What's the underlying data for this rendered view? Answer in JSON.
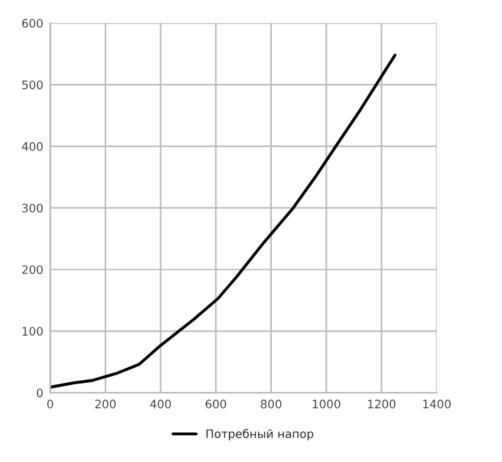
{
  "chart_data": {
    "type": "line",
    "series": [
      {
        "name": "Потребный напор",
        "color": "#000000",
        "x": [
          0,
          87,
          154,
          238,
          322,
          398,
          520,
          608,
          675,
          776,
          877,
          960,
          1036,
          1120,
          1199,
          1249
        ],
        "values": [
          9,
          16,
          20,
          31,
          46,
          76,
          119,
          153,
          188,
          245,
          298,
          350,
          401,
          457,
          513,
          548
        ]
      }
    ],
    "xlim": [
      0,
      1400
    ],
    "xticks": [
      0,
      200,
      400,
      600,
      800,
      1000,
      1200,
      1400
    ],
    "ylim": [
      0,
      600
    ],
    "yticks": [
      0,
      100,
      200,
      300,
      400,
      500,
      600
    ],
    "grid": true,
    "legend": "bottom",
    "marker": "none",
    "line_style": "solid"
  }
}
